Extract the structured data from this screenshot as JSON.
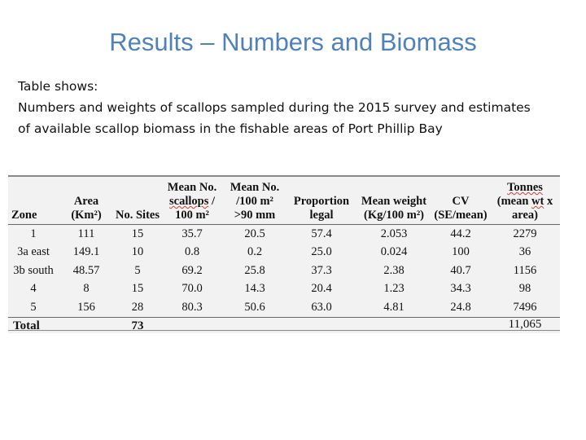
{
  "slide": {
    "title": "Results – Numbers and Biomass",
    "line1": "Table shows:",
    "line2": "Numbers and weights of scallops sampled during the 2015 survey and estimates",
    "line3": "of available scallop biomass in the fishable areas of Port Phillip Bay"
  },
  "table": {
    "headers": {
      "zone": [
        "Zone"
      ],
      "area": [
        "Area",
        "(Km²)"
      ],
      "sites": [
        "No. Sites"
      ],
      "mean_no_pre": "Mean No.",
      "mean_no_wavy": "scallops",
      "mean_no_post": " /",
      "mean_no_last": "100 m²",
      "mean90": [
        "Mean No.",
        "/100 m²",
        ">90 mm"
      ],
      "proportion": [
        "Proportion",
        "legal"
      ],
      "weight": [
        "Mean weight",
        "(Kg/100 m²)"
      ],
      "cv": [
        "CV",
        "(SE/mean)"
      ],
      "tonnes_wavy": "Tonnes",
      "tonnes_mid_pre": "(mean ",
      "tonnes_mid_wavy": "wt",
      "tonnes_mid_post": " x",
      "tonnes_last": "area)"
    },
    "rows": [
      {
        "zone": "1",
        "area": "111",
        "sites": "15",
        "mean_no": "35.7",
        "mean90": "20.5",
        "proportion": "57.4",
        "weight": "2.053",
        "cv": "44.2",
        "tonnes": "2279"
      },
      {
        "zone": "3a east",
        "area": "149.1",
        "sites": "10",
        "mean_no": "0.8",
        "mean90": "0.2",
        "proportion": "25.0",
        "weight": "0.024",
        "cv": "100",
        "tonnes": "36"
      },
      {
        "zone": "3b south",
        "area": "48.57",
        "sites": "5",
        "mean_no": "69.2",
        "mean90": "25.8",
        "proportion": "37.3",
        "weight": "2.38",
        "cv": "40.7",
        "tonnes": "1156"
      },
      {
        "zone": "4",
        "area": "8",
        "sites": "15",
        "mean_no": "70.0",
        "mean90": "14.3",
        "proportion": "20.4",
        "weight": "1.23",
        "cv": "34.3",
        "tonnes": "98"
      },
      {
        "zone": "5",
        "area": "156",
        "sites": "28",
        "mean_no": "80.3",
        "mean90": "50.6",
        "proportion": "63.0",
        "weight": "4.81",
        "cv": "24.8",
        "tonnes": "7496"
      }
    ],
    "total": {
      "label": "Total",
      "sites": "73",
      "tonnes": "11,065"
    }
  }
}
